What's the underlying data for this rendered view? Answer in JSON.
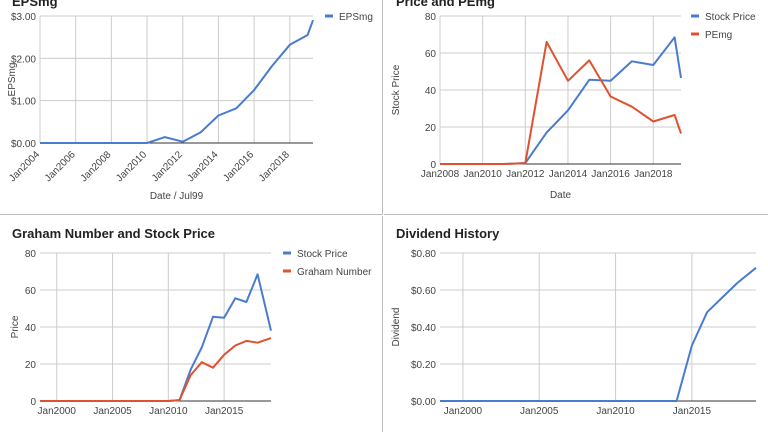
{
  "colors": {
    "blue": "#4a7bd0",
    "red": "#e0522f",
    "grid": "#cccccc",
    "axis": "#333333",
    "tick": "#444444"
  },
  "chart_data": [
    {
      "type": "line",
      "title": "EPSmg",
      "xlabel": "Date / Jul99",
      "ylabel": "EPSmg",
      "x_ticks": [
        "Jan2004",
        "Jan2006",
        "Jan2008",
        "Jan2010",
        "Jan2012",
        "Jan2014",
        "Jan2016",
        "Jan2018"
      ],
      "x_range": [
        2004,
        2019.3
      ],
      "ylim": [
        0,
        3
      ],
      "y_ticks": [
        "$0.00",
        "$1.00",
        "$2.00",
        "$3.00"
      ],
      "y_tick_values": [
        0,
        1,
        2,
        3
      ],
      "legend": "top-right",
      "grid": true,
      "series": [
        {
          "name": "EPSmg",
          "color": "#4a7bd0",
          "x": [
            2004,
            2005,
            2006,
            2007,
            2008,
            2009,
            2010,
            2011,
            2012,
            2013,
            2014,
            2015,
            2016,
            2017,
            2018,
            2019,
            2019.3
          ],
          "y": [
            0,
            0,
            0,
            0,
            0,
            0,
            0,
            0.14,
            0.03,
            0.25,
            0.65,
            0.82,
            1.25,
            1.82,
            2.32,
            2.55,
            2.9
          ]
        }
      ]
    },
    {
      "type": "line",
      "title": "Price and PEmg",
      "xlabel": "Date",
      "ylabel": "Stock Price",
      "x_ticks": [
        "Jan2008",
        "Jan2010",
        "Jan2012",
        "Jan2014",
        "Jan2016",
        "Jan2018"
      ],
      "x_range": [
        2008,
        2019.3
      ],
      "ylim": [
        0,
        80
      ],
      "y_ticks": [
        "0",
        "20",
        "40",
        "60",
        "80"
      ],
      "y_tick_values": [
        0,
        20,
        40,
        60,
        80
      ],
      "legend": "top-right",
      "grid": true,
      "series": [
        {
          "name": "Stock Price",
          "color": "#4a7bd0",
          "x": [
            2008,
            2009,
            2010,
            2011,
            2012,
            2013,
            2014,
            2015,
            2016,
            2017,
            2018,
            2019,
            2019.3
          ],
          "y": [
            0,
            0,
            0,
            0,
            0.5,
            17,
            29,
            45.5,
            45,
            55.5,
            53.5,
            68.5,
            46.5
          ]
        },
        {
          "name": "PEmg",
          "color": "#e0522f",
          "x": [
            2008,
            2009,
            2010,
            2011,
            2012,
            2013,
            2014,
            2015,
            2016,
            2017,
            2018,
            2019,
            2019.3
          ],
          "y": [
            0,
            0,
            0,
            0,
            0.5,
            66,
            45,
            56,
            36.5,
            31,
            23,
            26.5,
            16.5
          ]
        }
      ]
    },
    {
      "type": "line",
      "title": "Graham Number and Stock Price",
      "xlabel": "",
      "ylabel": "Price",
      "x_ticks": [
        "Jan2000",
        "Jan2005",
        "Jan2010",
        "Jan2015"
      ],
      "x_range": [
        1998.5,
        2019.2
      ],
      "ylim": [
        0,
        80
      ],
      "y_ticks": [
        "0",
        "20",
        "40",
        "60",
        "80"
      ],
      "y_tick_values": [
        0,
        20,
        40,
        60,
        80
      ],
      "legend": "top-right",
      "grid": true,
      "series": [
        {
          "name": "Stock Price",
          "color": "#4a7bd0",
          "x": [
            1998.5,
            2000,
            2005,
            2010,
            2011,
            2012,
            2013,
            2014,
            2015,
            2016,
            2017,
            2018,
            2019.2
          ],
          "y": [
            0,
            0,
            0,
            0,
            0.5,
            17,
            29,
            45.5,
            45,
            55.5,
            53.5,
            68.5,
            38
          ]
        },
        {
          "name": "Graham Number",
          "color": "#e0522f",
          "x": [
            1998.5,
            2000,
            2005,
            2010,
            2011,
            2012,
            2013,
            2014,
            2015,
            2016,
            2017,
            2018,
            2019.2
          ],
          "y": [
            0,
            0,
            0,
            0,
            0.5,
            14,
            21,
            18,
            25,
            30,
            32.5,
            31.5,
            34
          ]
        }
      ]
    },
    {
      "type": "line",
      "title": "Dividend History",
      "xlabel": "",
      "ylabel": "Dividend",
      "x_ticks": [
        "Jan2000",
        "Jan2005",
        "Jan2010",
        "Jan2015"
      ],
      "x_range": [
        1998.5,
        2019.2
      ],
      "ylim": [
        0,
        0.8
      ],
      "y_ticks": [
        "$0.00",
        "$0.20",
        "$0.40",
        "$0.60",
        "$0.80"
      ],
      "y_tick_values": [
        0,
        0.2,
        0.4,
        0.6,
        0.8
      ],
      "legend": "none",
      "grid": true,
      "series": [
        {
          "color": "#4a7bd0",
          "x": [
            1998.5,
            2000,
            2005,
            2010,
            2014,
            2015,
            2016,
            2017,
            2018,
            2019.2
          ],
          "y": [
            0,
            0,
            0,
            0,
            0,
            0.3,
            0.48,
            0.56,
            0.64,
            0.72
          ]
        }
      ]
    }
  ]
}
